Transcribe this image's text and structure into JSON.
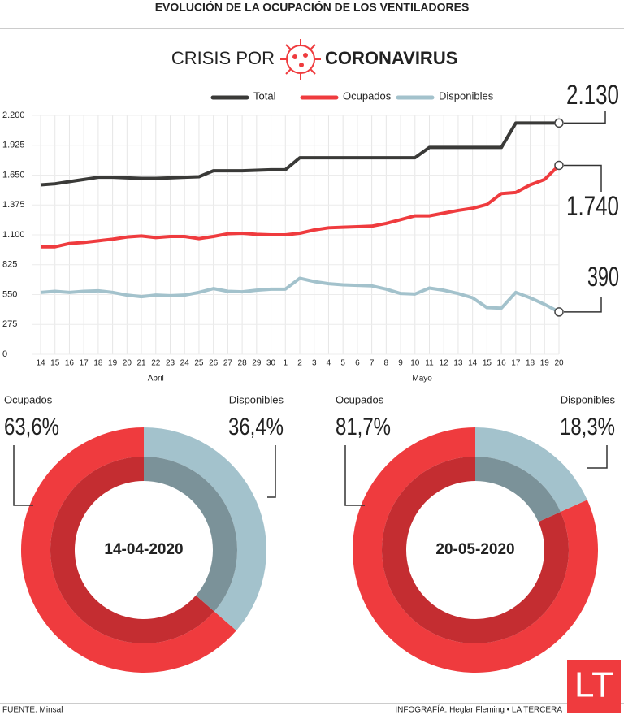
{
  "header": {
    "title": "EVOLUCIÓN DE LA OCUPACIÓN DE LOS VENTILADORES",
    "kicker": "CRISIS POR",
    "topic": "CORONAVIRUS"
  },
  "chart_data": [
    {
      "type": "line",
      "categories": [
        "14",
        "15",
        "16",
        "17",
        "18",
        "19",
        "20",
        "21",
        "22",
        "23",
        "24",
        "25",
        "26",
        "27",
        "28",
        "29",
        "30",
        "1",
        "2",
        "3",
        "4",
        "5",
        "6",
        "7",
        "8",
        "9",
        "10",
        "11",
        "12",
        "13",
        "14",
        "15",
        "16",
        "17",
        "18",
        "19",
        "20"
      ],
      "x_groups": [
        "Abril",
        "Mayo"
      ],
      "ylim": [
        0,
        2200
      ],
      "yticks": [
        0,
        275,
        550,
        825,
        {
          "value": 1100,
          "label": "1.100"
        },
        {
          "value": 1375,
          "label": "1.375"
        },
        {
          "value": 1650,
          "label": "1.650"
        },
        {
          "value": 1925,
          "label": "1.925"
        },
        {
          "value": 2200,
          "label": "2.200"
        }
      ],
      "grid": true,
      "series": [
        {
          "name": "Total",
          "color": "#3a3a38",
          "end_label": "2.130",
          "values": [
            1560,
            1570,
            1590,
            1610,
            1630,
            1630,
            1625,
            1620,
            1620,
            1625,
            1630,
            1635,
            1690,
            1690,
            1690,
            1695,
            1700,
            1700,
            1810,
            1810,
            1810,
            1810,
            1810,
            1810,
            1810,
            1810,
            1810,
            1905,
            1905,
            1905,
            1905,
            1905,
            1905,
            2130,
            2130,
            2130,
            2130
          ]
        },
        {
          "name": "Ocupados",
          "color": "#ef3b3e",
          "end_label": "1.740",
          "values": [
            990,
            990,
            1020,
            1030,
            1045,
            1060,
            1080,
            1090,
            1075,
            1085,
            1085,
            1065,
            1085,
            1110,
            1115,
            1105,
            1100,
            1100,
            1115,
            1145,
            1165,
            1170,
            1175,
            1180,
            1205,
            1240,
            1275,
            1275,
            1300,
            1325,
            1345,
            1380,
            1480,
            1490,
            1560,
            1610,
            1740
          ]
        },
        {
          "name": "Disponibles",
          "color": "#a3c2cc",
          "end_label": "390",
          "values": [
            570,
            580,
            570,
            580,
            585,
            570,
            545,
            530,
            545,
            540,
            545,
            570,
            605,
            580,
            575,
            590,
            600,
            600,
            700,
            670,
            650,
            640,
            635,
            630,
            600,
            560,
            555,
            610,
            590,
            560,
            520,
            430,
            425,
            570,
            520,
            460,
            390
          ]
        }
      ]
    },
    {
      "type": "pie",
      "title": "14-04-2020",
      "categories": [
        "Ocupados",
        "Disponibles"
      ],
      "values": [
        63.6,
        36.4
      ],
      "value_labels": [
        "63,6%",
        "36,4%"
      ],
      "colors": [
        "#ef3b3e",
        "#a3c2cc"
      ]
    },
    {
      "type": "pie",
      "title": "20-05-2020",
      "categories": [
        "Ocupados",
        "Disponibles"
      ],
      "values": [
        81.7,
        18.3
      ],
      "value_labels": [
        "81,7%",
        "18,3%"
      ],
      "colors": [
        "#ef3b3e",
        "#a3c2cc"
      ]
    }
  ],
  "footer": {
    "source": "FUENTE: Minsal",
    "credit": "INFOGRAFÍA: Heglar Fleming • LA TERCERA",
    "logo": "LT"
  }
}
